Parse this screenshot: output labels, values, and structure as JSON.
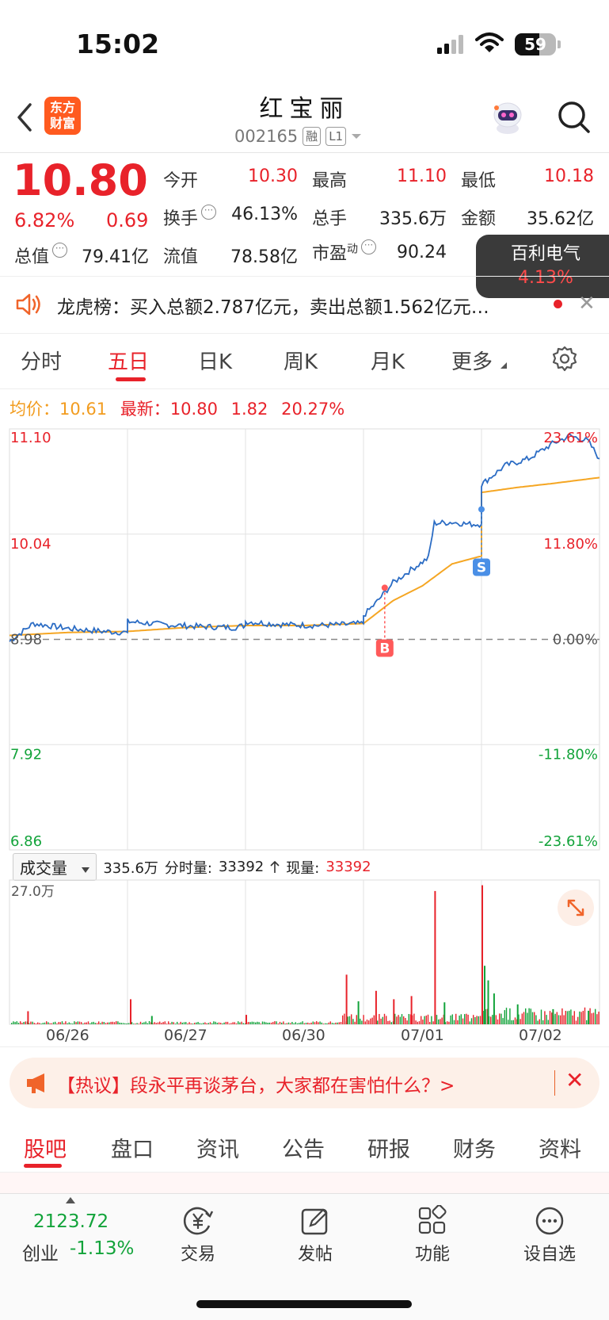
{
  "status": {
    "time": "15:02",
    "battery": "59",
    "battery_level": 0.59
  },
  "header": {
    "logo_line1": "东方",
    "logo_line2": "财富",
    "stock_name": "红宝丽",
    "code": "002165",
    "tag1": "融",
    "tag2": "L1"
  },
  "quote": {
    "price": "10.80",
    "change_pct": "6.82%",
    "change_amt": "0.69",
    "open_label": "今开",
    "open": "10.30",
    "high_label": "最高",
    "high": "11.10",
    "low_label": "最低",
    "low": "10.18",
    "turnover_label": "换手",
    "turnover": "46.13%",
    "volume_label": "总手",
    "volume": "335.6万",
    "amount_label": "金额",
    "amount": "35.62亿",
    "mktcap_label": "总值",
    "mktcap": "79.41亿",
    "float_label": "流值",
    "float": "78.58亿",
    "pe_label": "市盈",
    "pe_sup": "动",
    "pe": "90.24",
    "dots": "···"
  },
  "sector": {
    "name": "百利电气",
    "pct": "4.13%"
  },
  "dragon_tiger": {
    "text": "龙虎榜：买入总额2.787亿元，卖出总额1.562亿元…",
    "close": "✕"
  },
  "chart_tabs": [
    "分时",
    "五日",
    "日K",
    "周K",
    "月K",
    "更多"
  ],
  "info_line": {
    "avg_label": "均价：",
    "avg": "10.61",
    "latest_label": "最新：",
    "latest": "10.80",
    "chg": "1.82",
    "pct": "20.27%"
  },
  "chart_data": {
    "type": "line",
    "y_left": [
      "11.10",
      "10.04",
      "8.98",
      "7.92",
      "6.86"
    ],
    "y_right": [
      "23.61%",
      "11.80%",
      "0.00%",
      "-11.80%",
      "-23.61%"
    ],
    "dates": [
      "06/26",
      "06/27",
      "06/30",
      "07/01",
      "07/02"
    ],
    "ylim": [
      6.86,
      11.1
    ],
    "prev_close": 8.98,
    "price_series": [
      [
        0.0,
        8.96
      ],
      [
        0.2,
        9.14
      ],
      [
        0.5,
        9.09
      ],
      [
        0.8,
        9.06
      ],
      [
        1.0,
        9.05
      ],
      [
        1.0,
        9.16
      ],
      [
        1.3,
        9.13
      ],
      [
        1.6,
        9.11
      ],
      [
        1.9,
        9.1
      ],
      [
        2.0,
        9.12
      ],
      [
        2.0,
        9.16
      ],
      [
        2.3,
        9.13
      ],
      [
        2.6,
        9.12
      ],
      [
        2.85,
        9.13
      ],
      [
        3.0,
        9.14
      ],
      [
        3.0,
        9.22
      ],
      [
        3.1,
        9.34
      ],
      [
        3.25,
        9.55
      ],
      [
        3.4,
        9.68
      ],
      [
        3.55,
        9.8
      ],
      [
        3.6,
        10.15
      ],
      [
        3.75,
        10.16
      ],
      [
        3.9,
        10.14
      ],
      [
        4.0,
        10.14
      ],
      [
        4.0,
        10.54
      ],
      [
        4.2,
        10.73
      ],
      [
        4.4,
        10.8
      ],
      [
        4.6,
        10.95
      ],
      [
        4.75,
        11.03
      ],
      [
        4.9,
        10.98
      ],
      [
        5.0,
        10.8
      ]
    ],
    "avg_series": [
      [
        0.0,
        9.02
      ],
      [
        0.5,
        9.05
      ],
      [
        1.0,
        9.06
      ],
      [
        1.5,
        9.1
      ],
      [
        2.0,
        9.12
      ],
      [
        2.5,
        9.12
      ],
      [
        3.0,
        9.14
      ],
      [
        3.25,
        9.37
      ],
      [
        3.5,
        9.52
      ],
      [
        3.75,
        9.74
      ],
      [
        4.0,
        9.82
      ],
      [
        4.0,
        10.46
      ],
      [
        4.3,
        10.51
      ],
      [
        4.6,
        10.55
      ],
      [
        5.0,
        10.61
      ]
    ],
    "markers": [
      {
        "label": "B",
        "x": 3.18,
        "y": 9.5
      },
      {
        "label": "S",
        "x": 4.0,
        "y": 10.29
      }
    ],
    "volume": {
      "max_label": "27.0万",
      "ymax": 27.0,
      "label": "成交量",
      "total": "335.6万",
      "minute_label": "分时量:",
      "minute": "33392",
      "current_label": "现量:",
      "current": "33392",
      "spikes": [
        [
          0.15,
          2.5,
          "r"
        ],
        [
          1.02,
          4.8,
          "r"
        ],
        [
          1.2,
          1.6,
          "g"
        ],
        [
          2.0,
          1.8,
          "r"
        ],
        [
          2.85,
          9.5,
          "r"
        ],
        [
          2.95,
          4.4,
          "g"
        ],
        [
          3.1,
          6.4,
          "r"
        ],
        [
          3.25,
          4.8,
          "r"
        ],
        [
          3.4,
          5.4,
          "r"
        ],
        [
          3.6,
          25.5,
          "r"
        ],
        [
          3.68,
          4.2,
          "g"
        ],
        [
          4.0,
          26.6,
          "r"
        ],
        [
          4.02,
          11.2,
          "g"
        ],
        [
          4.05,
          8.4,
          "g"
        ],
        [
          4.1,
          5.9,
          "g"
        ],
        [
          4.3,
          3.8,
          "g"
        ],
        [
          4.6,
          2.9,
          "g"
        ],
        [
          4.9,
          2.6,
          "g"
        ]
      ]
    }
  },
  "hot_topic": {
    "text": "【热议】段永平再谈茅台，大家都在害怕什么？>",
    "close": "✕"
  },
  "bottom_tabs": [
    "股吧",
    "盘口",
    "资讯",
    "公告",
    "研报",
    "财务",
    "资料"
  ],
  "bottom_nav": {
    "index_value": "2123.72",
    "index_name": "创业",
    "index_change": "-1.13%",
    "items": [
      "交易",
      "发帖",
      "功能",
      "设自选"
    ]
  },
  "colors": {
    "up": "#e8222a",
    "down": "#12a33a",
    "price_line": "#2b6cc4",
    "avg_line": "#f5a623",
    "brand": "#ff5a1f"
  }
}
